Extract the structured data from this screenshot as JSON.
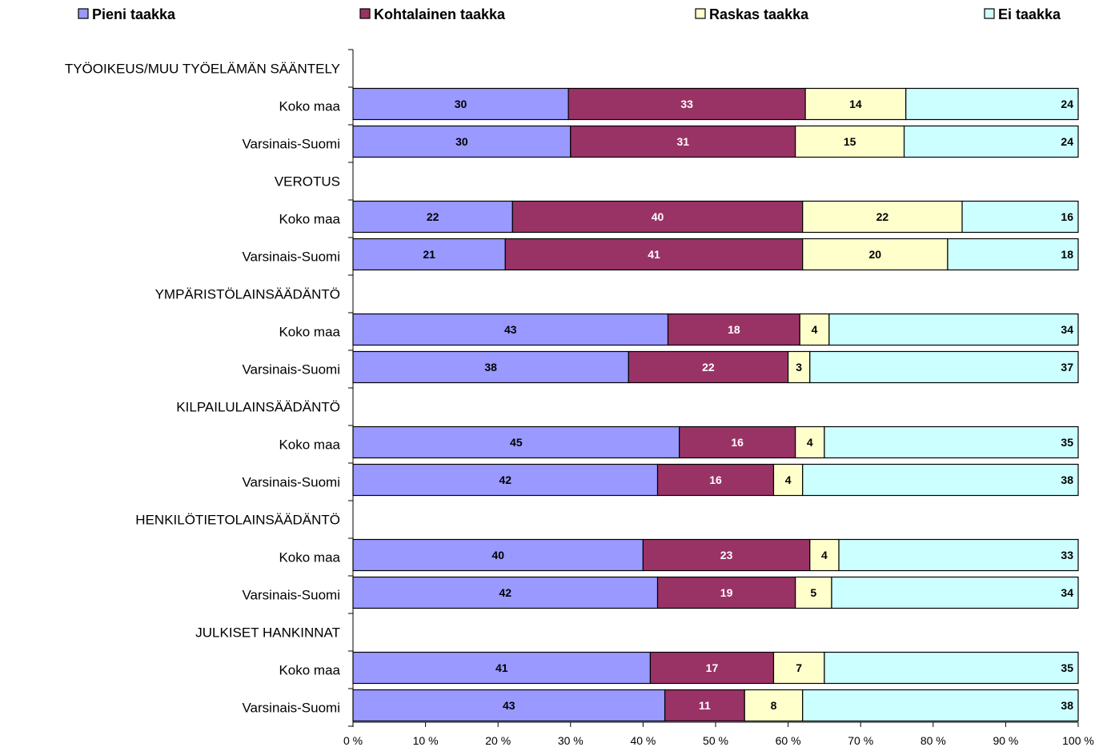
{
  "chart_data": {
    "type": "bar",
    "orientation": "horizontal",
    "stacked": "percent",
    "legend": {
      "placement": "top",
      "items": [
        {
          "name": "Pieni taakka",
          "color": "#9999ff"
        },
        {
          "name": "Kohtalainen taakka",
          "color": "#993366"
        },
        {
          "name": "Raskas taakka",
          "color": "#ffffcc"
        },
        {
          "name": "Ei taakka",
          "color": "#ccffff"
        }
      ]
    },
    "label_colors": [
      "#000000",
      "#ffffff",
      "#000000",
      "#000000"
    ],
    "rows": [
      {
        "label": "TYÖOIKEUS/MUU TYÖELÄMÄN SÄÄNTELY",
        "header": true
      },
      {
        "label": "Koko maa",
        "values": [
          30,
          33,
          14,
          24
        ]
      },
      {
        "label": "Varsinais-Suomi",
        "values": [
          30,
          31,
          15,
          24
        ]
      },
      {
        "label": "VEROTUS",
        "header": true
      },
      {
        "label": "Koko maa",
        "values": [
          22,
          40,
          22,
          16
        ]
      },
      {
        "label": "Varsinais-Suomi",
        "values": [
          21,
          41,
          20,
          18
        ]
      },
      {
        "label": "YMPÄRISTÖLAINSÄÄDÄNTÖ",
        "header": true
      },
      {
        "label": "Koko maa",
        "values": [
          43,
          18,
          4,
          34
        ]
      },
      {
        "label": "Varsinais-Suomi",
        "values": [
          38,
          22,
          3,
          37
        ]
      },
      {
        "label": "KILPAILULAINSÄÄDÄNTÖ",
        "header": true
      },
      {
        "label": "Koko maa",
        "values": [
          45,
          16,
          4,
          35
        ]
      },
      {
        "label": "Varsinais-Suomi",
        "values": [
          42,
          16,
          4,
          38
        ]
      },
      {
        "label": "HENKILÖTIETOLAINSÄÄDÄNTÖ",
        "header": true
      },
      {
        "label": "Koko maa",
        "values": [
          40,
          23,
          4,
          33
        ]
      },
      {
        "label": "Varsinais-Suomi",
        "values": [
          42,
          19,
          5,
          34
        ]
      },
      {
        "label": "JULKISET HANKINNAT",
        "header": true
      },
      {
        "label": "Koko maa",
        "values": [
          41,
          17,
          7,
          35
        ]
      },
      {
        "label": "Varsinais-Suomi",
        "values": [
          43,
          11,
          8,
          38
        ]
      }
    ],
    "x_ticks": [
      "0 %",
      "10 %",
      "20 %",
      "30 %",
      "40 %",
      "50 %",
      "60 %",
      "70 %",
      "80 %",
      "90 %",
      "100 %"
    ],
    "xlim": [
      0,
      100
    ],
    "grid": false,
    "title": "",
    "xlabel": "",
    "ylabel": ""
  }
}
